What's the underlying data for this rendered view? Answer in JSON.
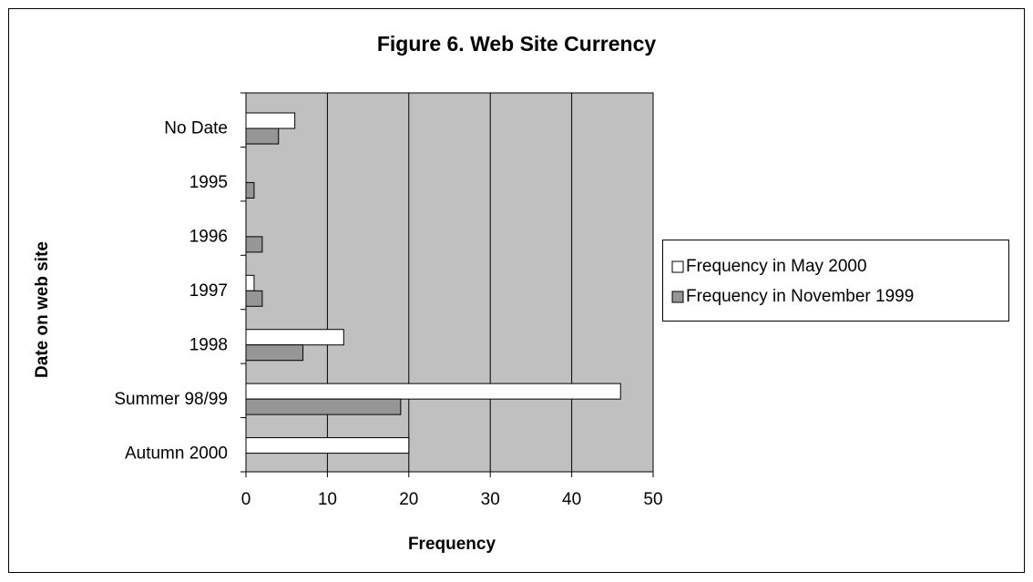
{
  "chart_data": {
    "type": "hbar",
    "title": "Figure 6.  Web Site Currency",
    "xlabel": "Frequency",
    "ylabel": "Date on web site",
    "categories": [
      "No Date",
      "1995",
      "1996",
      "1997",
      "1998",
      "Summer 98/99",
      "Autumn 2000"
    ],
    "series": [
      {
        "name": "Frequency in May 2000",
        "color": "#ffffff",
        "values": [
          6,
          0,
          0,
          1,
          12,
          46,
          20
        ]
      },
      {
        "name": "Frequency in November 1999",
        "color": "#969696",
        "values": [
          4,
          1,
          2,
          2,
          7,
          19,
          0
        ]
      }
    ],
    "xlim": [
      0,
      50
    ],
    "xticks": [
      0,
      10,
      20,
      30,
      40,
      50
    ],
    "grid": true,
    "legend": "right",
    "plot_background": "#c0c0c0"
  }
}
